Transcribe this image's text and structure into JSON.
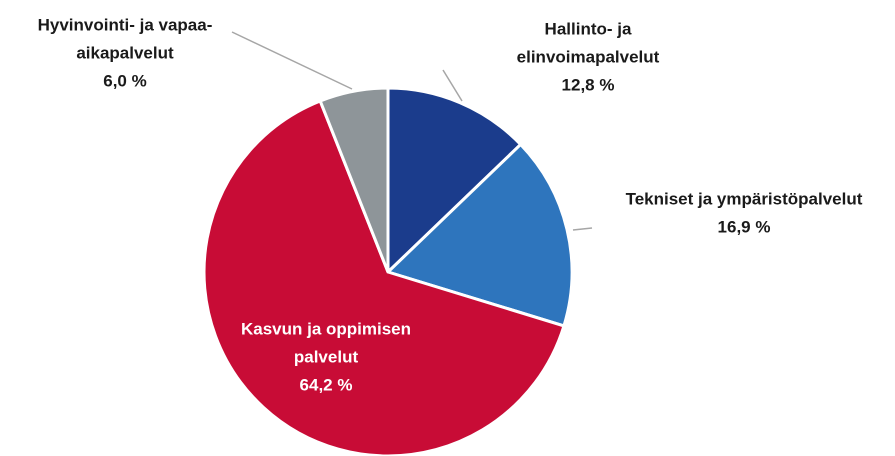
{
  "chart_data": {
    "type": "pie",
    "categories": [
      [
        "Hallinto- ja",
        "elinvoimapalvelut"
      ],
      [
        "Tekniset ja ympäristöpalvelut"
      ],
      [
        "Kasvun ja oppimisen",
        "palvelut"
      ],
      [
        "Hyvinvointi- ja vapaa-",
        "aikapalvelut"
      ]
    ],
    "values": [
      12.8,
      16.9,
      64.2,
      6.0
    ],
    "value_labels": [
      "12,8 %",
      "16,9 %",
      "64,2 %",
      "6,0 %"
    ],
    "colors": [
      "#1b3c8c",
      "#2e75bd",
      "#c80c36",
      "#8e9599"
    ]
  }
}
